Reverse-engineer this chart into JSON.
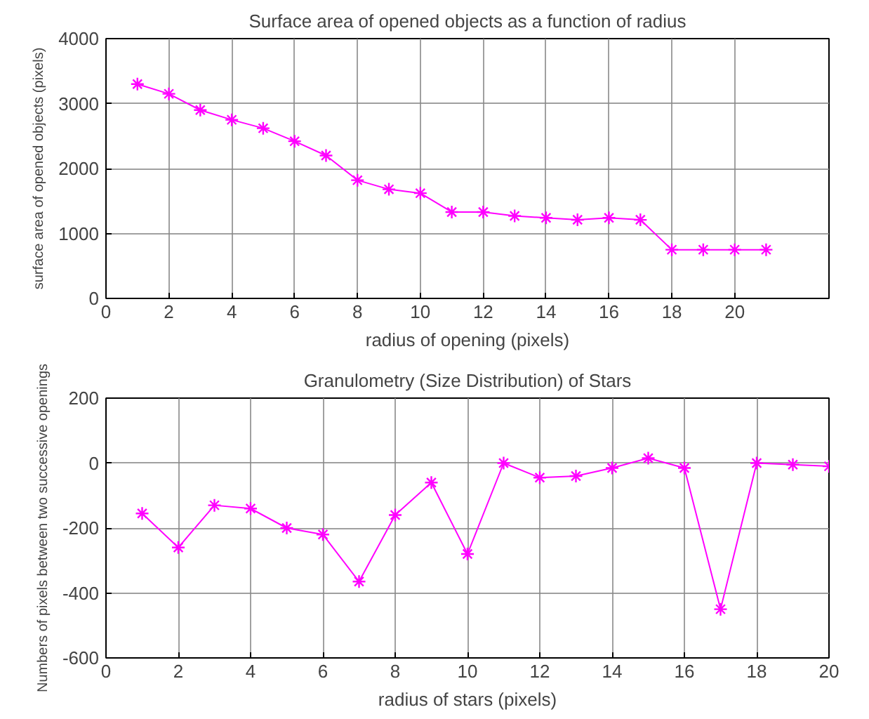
{
  "chart_data": [
    {
      "type": "line",
      "title": "Surface area of opened objects as a function of radius",
      "xlabel": "radius of opening (pixels)",
      "ylabel": "surface area of opened objects (pixels)",
      "x": [
        1,
        2,
        3,
        4,
        5,
        6,
        7,
        8,
        9,
        10,
        11,
        12,
        13,
        14,
        15,
        16,
        17,
        18,
        19,
        20,
        21
      ],
      "series": [
        {
          "color": "#ff00ff",
          "values": [
            3300,
            3150,
            2900,
            2750,
            2620,
            2420,
            2200,
            1820,
            1680,
            1620,
            1330,
            1330,
            1270,
            1240,
            1210,
            1240,
            1210,
            750,
            750,
            750,
            750
          ]
        }
      ],
      "xlim": [
        0,
        23
      ],
      "xticks": [
        0,
        2,
        4,
        6,
        8,
        10,
        12,
        14,
        16,
        18,
        20
      ],
      "ylim": [
        0,
        4000
      ],
      "yticks": [
        0,
        1000,
        2000,
        3000,
        4000
      ],
      "grid": true,
      "marker": "cross",
      "line_style": "solid"
    },
    {
      "type": "line",
      "title": "Granulometry (Size Distribution) of Stars",
      "xlabel": "radius of stars (pixels)",
      "ylabel": "Numbers of pixels between two successive openings",
      "x": [
        1,
        2,
        3,
        4,
        5,
        6,
        7,
        8,
        9,
        10,
        11,
        12,
        13,
        14,
        15,
        16,
        17,
        18,
        19,
        20
      ],
      "series": [
        {
          "color": "#ff00ff",
          "values": [
            -155,
            -260,
            -130,
            -140,
            -200,
            -220,
            -365,
            -160,
            -60,
            -280,
            0,
            -45,
            -40,
            -15,
            15,
            -15,
            -450,
            0,
            -5,
            -10
          ]
        }
      ],
      "xlim": [
        0,
        20
      ],
      "xticks": [
        0,
        2,
        4,
        6,
        8,
        10,
        12,
        14,
        16,
        18,
        20
      ],
      "ylim": [
        -600,
        200
      ],
      "yticks": [
        -600,
        -400,
        -200,
        0,
        200
      ],
      "grid": true,
      "marker": "cross",
      "line_style": "solid"
    }
  ]
}
